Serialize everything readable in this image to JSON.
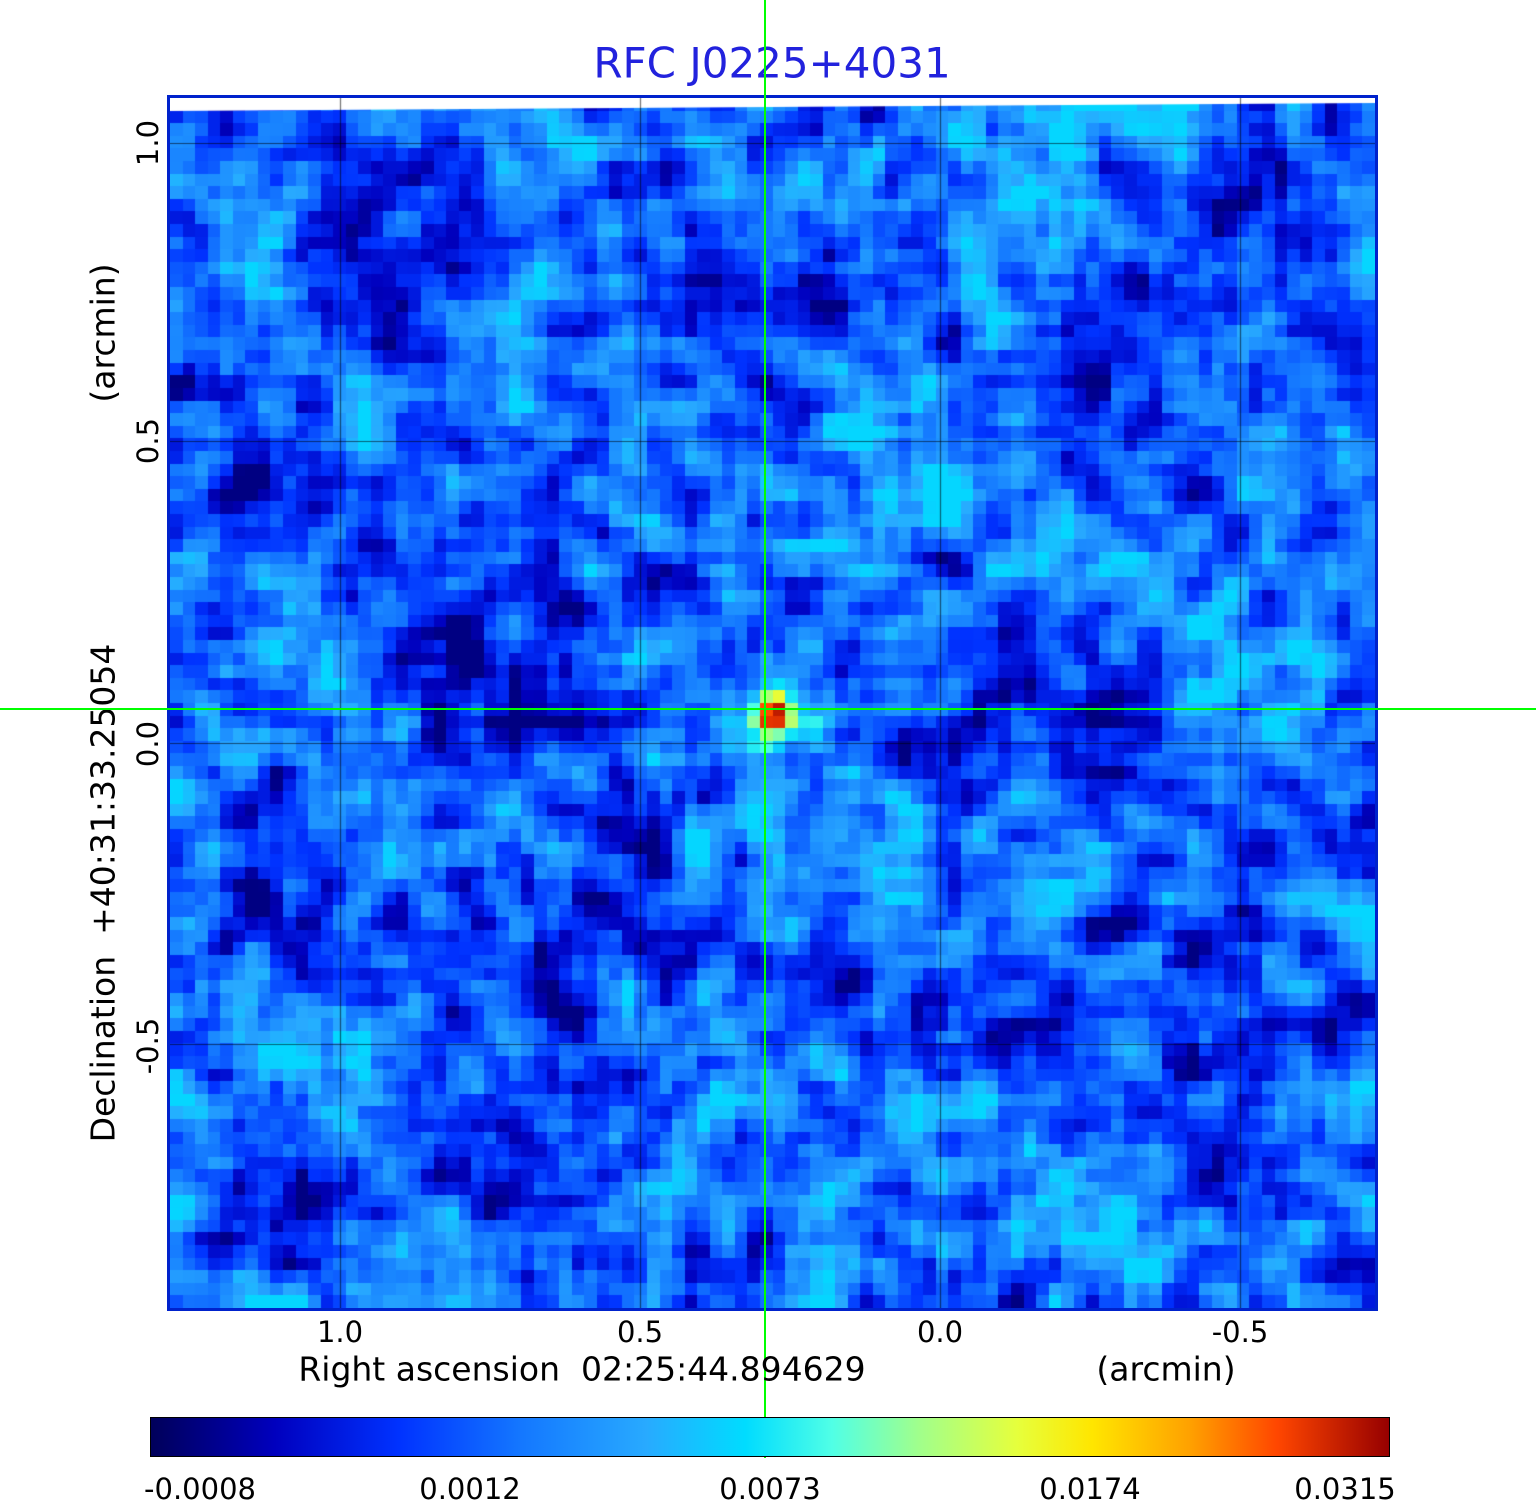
{
  "figure": {
    "title_color": "#2222dd",
    "background_color": "#ffffff",
    "frame_color": "#0022cc",
    "grid_color": "#000000"
  },
  "chart_data": {
    "type": "heatmap",
    "title": "RFC J0225+4031",
    "x_axis": {
      "label": "Right ascension  02:25:44.894629",
      "unit": "(arcmin)",
      "ticks": [
        "1.0",
        "0.5",
        "0.0",
        "-0.5"
      ],
      "range": [
        1.28,
        -0.72
      ]
    },
    "y_axis": {
      "label": "Declination  +40:31:33.25054",
      "unit": "(arcmin)",
      "ticks": [
        "1.0",
        "0.5",
        "0.0",
        "-0.5"
      ],
      "range": [
        -0.95,
        1.07
      ]
    },
    "grid": true,
    "crosshair": {
      "x_arcmin": 0.29,
      "y_arcmin": 0.06,
      "color": "#00ff00"
    },
    "source": {
      "name": "RFC J0225+4031",
      "ra": "02:25:44.894629",
      "dec": "+40:31:33.25054",
      "peak_intensity": 0.0315
    },
    "colorbar": {
      "ticks": [
        "-0.0008",
        "0.0012",
        "0.0073",
        "0.0174",
        "0.0315"
      ],
      "tick_positions": [
        0.04,
        0.258,
        0.5,
        0.758,
        0.964
      ],
      "gradient": [
        {
          "pos": 0.0,
          "color": "#00005A"
        },
        {
          "pos": 0.1,
          "color": "#0000BE"
        },
        {
          "pos": 0.2,
          "color": "#0032FF"
        },
        {
          "pos": 0.3,
          "color": "#1478FF"
        },
        {
          "pos": 0.4,
          "color": "#28AAFF"
        },
        {
          "pos": 0.48,
          "color": "#00DCFF"
        },
        {
          "pos": 0.55,
          "color": "#50FFE6"
        },
        {
          "pos": 0.62,
          "color": "#A0FF8C"
        },
        {
          "pos": 0.7,
          "color": "#E6FF3C"
        },
        {
          "pos": 0.76,
          "color": "#FFE600"
        },
        {
          "pos": 0.84,
          "color": "#FFA000"
        },
        {
          "pos": 0.91,
          "color": "#FF4600"
        },
        {
          "pos": 1.0,
          "color": "#960000"
        }
      ],
      "value_range": [
        -0.0008,
        0.0315
      ]
    }
  }
}
